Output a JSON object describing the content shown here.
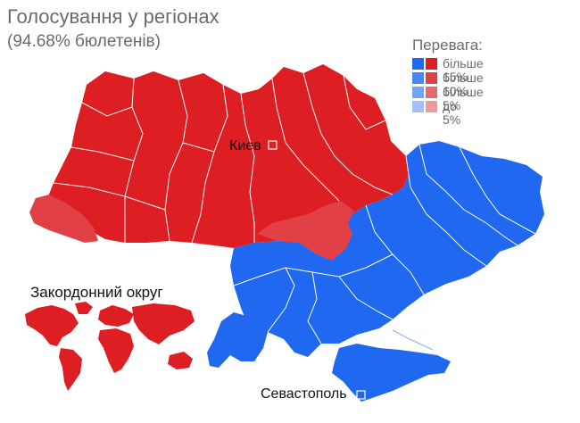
{
  "title": "Голосування у регіонах",
  "subtitle": "(94.68% бюлетенів)",
  "legend": {
    "title": "Перевага:",
    "items": [
      {
        "label": "більше 15%",
        "blue": "#1f68ef",
        "red": "#dd1e22"
      },
      {
        "label": "більше 10%",
        "blue": "#4a86f2",
        "red": "#e04046"
      },
      {
        "label": "більше 5%",
        "blue": "#74a2f5",
        "red": "#e56a6c"
      },
      {
        "label": "до 5%",
        "blue": "#a2c1f8",
        "red": "#ee9a9b"
      }
    ]
  },
  "colors": {
    "red_strong": "#dd1e22",
    "red_medium": "#e04046",
    "blue_strong": "#1f68ef",
    "border": "#ffffff",
    "sea_detail": "#9ec0f5"
  },
  "cities": {
    "kyiv": "Киев",
    "sevastopol": "Севастополь"
  },
  "abroad_label": "Закордонний округ"
}
